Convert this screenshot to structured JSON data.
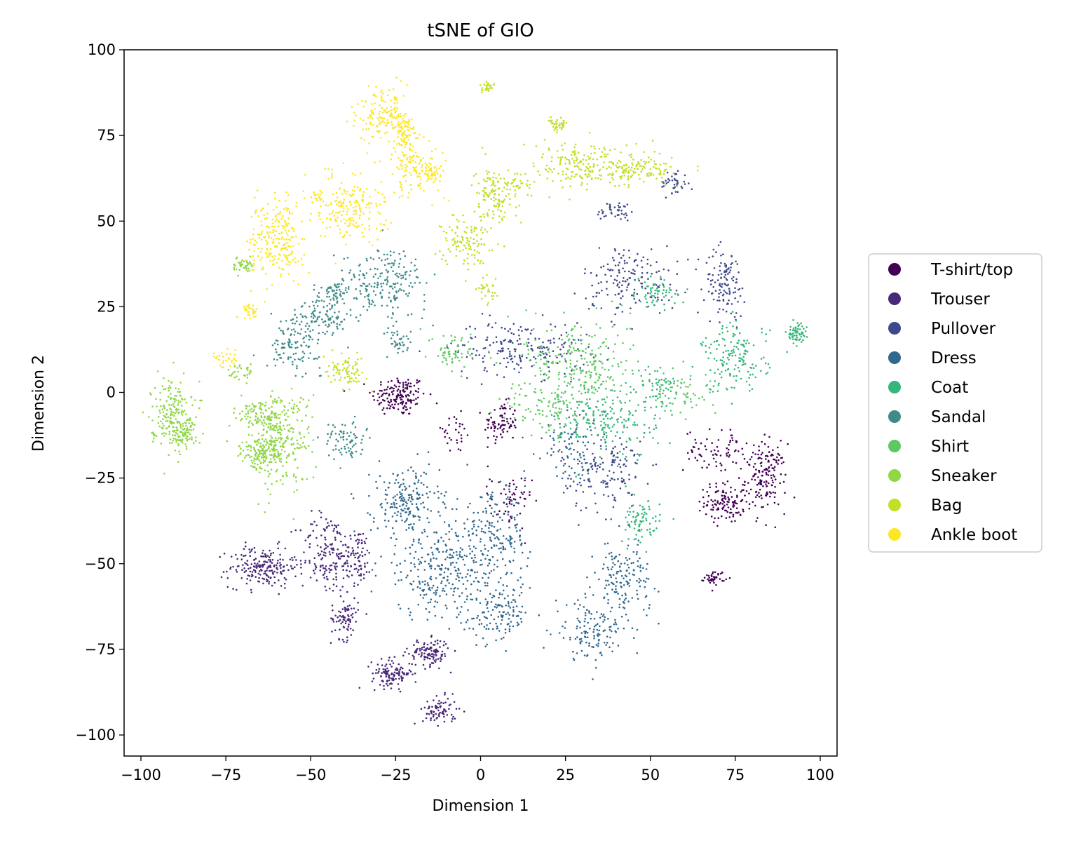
{
  "chart_data": {
    "type": "scatter",
    "title": "tSNE of GIO",
    "xlabel": "Dimension 1",
    "ylabel": "Dimension 2",
    "xlim": [
      -105,
      105
    ],
    "ylim": [
      -106,
      101
    ],
    "xticks": [
      -100,
      -75,
      -50,
      -25,
      0,
      25,
      50,
      75,
      100
    ],
    "yticks": [
      -100,
      -75,
      -50,
      -25,
      0,
      25,
      50,
      75,
      100
    ],
    "xtick_labels": [
      "−100",
      "−75",
      "−50",
      "−25",
      "0",
      "25",
      "50",
      "75",
      "100"
    ],
    "ytick_labels": [
      "−100",
      "−75",
      "−50",
      "−25",
      "0",
      "25",
      "50",
      "75",
      "100"
    ],
    "grid": false,
    "legend_position": "center-right-outside",
    "series": [
      {
        "name": "T-shirt/top",
        "color": "#440154",
        "clusters": [
          {
            "cx": -24,
            "cy": -1,
            "sx": 4,
            "sy": 3,
            "n": 160
          },
          {
            "cx": 6,
            "cy": -9,
            "sx": 2.5,
            "sy": 3,
            "n": 80
          },
          {
            "cx": 72,
            "cy": -32,
            "sx": 3,
            "sy": 3,
            "n": 120
          },
          {
            "cx": 84,
            "cy": -25,
            "sx": 3,
            "sy": 5,
            "n": 160
          },
          {
            "cx": 70,
            "cy": -17,
            "sx": 5,
            "sy": 3,
            "n": 80
          },
          {
            "cx": 69,
            "cy": -54,
            "sx": 1.5,
            "sy": 1,
            "n": 40
          },
          {
            "cx": 9,
            "cy": -32,
            "sx": 3,
            "sy": 4,
            "n": 60
          },
          {
            "cx": -8,
            "cy": -12,
            "sx": 3,
            "sy": 3,
            "n": 30
          }
        ]
      },
      {
        "name": "Trouser",
        "color": "#482878",
        "clusters": [
          {
            "cx": -64,
            "cy": -51,
            "sx": 5,
            "sy": 3,
            "n": 200
          },
          {
            "cx": -45,
            "cy": -47,
            "sx": 4,
            "sy": 6,
            "n": 160
          },
          {
            "cx": -36,
            "cy": -48,
            "sx": 2,
            "sy": 4,
            "n": 80
          },
          {
            "cx": -40,
            "cy": -66,
            "sx": 2,
            "sy": 3,
            "n": 80
          },
          {
            "cx": -26,
            "cy": -82,
            "sx": 3,
            "sy": 2,
            "n": 120
          },
          {
            "cx": -15,
            "cy": -76,
            "sx": 3,
            "sy": 2,
            "n": 120
          },
          {
            "cx": -12,
            "cy": -93,
            "sx": 2.5,
            "sy": 2,
            "n": 80
          }
        ]
      },
      {
        "name": "Pullover",
        "color": "#3e4989",
        "clusters": [
          {
            "cx": 12,
            "cy": 13,
            "sx": 10,
            "sy": 4,
            "n": 200
          },
          {
            "cx": 36,
            "cy": -23,
            "sx": 6,
            "sy": 6,
            "n": 160
          },
          {
            "cx": 44,
            "cy": 33,
            "sx": 7,
            "sy": 5,
            "n": 160
          },
          {
            "cx": 72,
            "cy": 32,
            "sx": 3,
            "sy": 5,
            "n": 120
          },
          {
            "cx": 57,
            "cy": 61,
            "sx": 2,
            "sy": 2,
            "n": 40
          },
          {
            "cx": 40,
            "cy": 53,
            "sx": 3,
            "sy": 1.5,
            "n": 40
          }
        ]
      },
      {
        "name": "Dress",
        "color": "#31688e",
        "clusters": [
          {
            "cx": -22,
            "cy": -32,
            "sx": 5,
            "sy": 5,
            "n": 200
          },
          {
            "cx": -10,
            "cy": -52,
            "sx": 10,
            "sy": 7,
            "n": 320
          },
          {
            "cx": 4,
            "cy": -42,
            "sx": 5,
            "sy": 6,
            "n": 160
          },
          {
            "cx": 6,
            "cy": -65,
            "sx": 4,
            "sy": 4,
            "n": 120
          },
          {
            "cx": 32,
            "cy": -70,
            "sx": 5,
            "sy": 4,
            "n": 120
          },
          {
            "cx": 42,
            "cy": -55,
            "sx": 4,
            "sy": 6,
            "n": 160
          },
          {
            "cx": 25,
            "cy": -15,
            "sx": 5,
            "sy": 5,
            "n": 80
          }
        ]
      },
      {
        "name": "Coat",
        "color": "#35b779",
        "clusters": [
          {
            "cx": 38,
            "cy": -8,
            "sx": 7,
            "sy": 6,
            "n": 200
          },
          {
            "cx": 75,
            "cy": 10,
            "sx": 5,
            "sy": 5,
            "n": 160
          },
          {
            "cx": 93,
            "cy": 17,
            "sx": 1.5,
            "sy": 1.5,
            "n": 60
          },
          {
            "cx": 52,
            "cy": 29,
            "sx": 3,
            "sy": 2,
            "n": 60
          },
          {
            "cx": 47,
            "cy": -38,
            "sx": 3,
            "sy": 3,
            "n": 80
          },
          {
            "cx": 52,
            "cy": 2,
            "sx": 3,
            "sy": 3,
            "n": 60
          }
        ]
      },
      {
        "name": "Sandal",
        "color": "#3e8b8a",
        "clusters": [
          {
            "cx": -28,
            "cy": 32,
            "sx": 6,
            "sy": 5,
            "n": 200
          },
          {
            "cx": -47,
            "cy": 22,
            "sx": 5,
            "sy": 3,
            "n": 120
          },
          {
            "cx": -55,
            "cy": 13,
            "sx": 4,
            "sy": 3,
            "n": 100
          },
          {
            "cx": -40,
            "cy": -14,
            "sx": 3,
            "sy": 3,
            "n": 80
          },
          {
            "cx": -43,
            "cy": 29,
            "sx": 3,
            "sy": 2,
            "n": 60
          },
          {
            "cx": -24,
            "cy": 15,
            "sx": 2,
            "sy": 2,
            "n": 40
          }
        ]
      },
      {
        "name": "Shirt",
        "color": "#5ec962",
        "clusters": [
          {
            "cx": 28,
            "cy": 10,
            "sx": 8,
            "sy": 6,
            "n": 200
          },
          {
            "cx": -8,
            "cy": 12,
            "sx": 3,
            "sy": 3,
            "n": 60
          },
          {
            "cx": 20,
            "cy": -5,
            "sx": 6,
            "sy": 4,
            "n": 100
          },
          {
            "cx": 60,
            "cy": 0,
            "sx": 5,
            "sy": 4,
            "n": 60
          },
          {
            "cx": 32,
            "cy": 3,
            "sx": 3,
            "sy": 3,
            "n": 40
          }
        ]
      },
      {
        "name": "Sneaker",
        "color": "#8fd744",
        "clusters": [
          {
            "cx": -91,
            "cy": -6,
            "sx": 3,
            "sy": 5,
            "n": 200
          },
          {
            "cx": -87,
            "cy": -12,
            "sx": 2,
            "sy": 2,
            "n": 60
          },
          {
            "cx": -60,
            "cy": -13,
            "sx": 5,
            "sy": 7,
            "n": 320
          },
          {
            "cx": -65,
            "cy": -18,
            "sx": 3,
            "sy": 2,
            "n": 100
          },
          {
            "cx": -70,
            "cy": 37,
            "sx": 1.5,
            "sy": 1.5,
            "n": 40
          },
          {
            "cx": -66,
            "cy": -6,
            "sx": 3,
            "sy": 2,
            "n": 60
          },
          {
            "cx": -70,
            "cy": 6,
            "sx": 2,
            "sy": 1.5,
            "n": 30
          }
        ]
      },
      {
        "name": "Bag",
        "color": "#c2df23",
        "clusters": [
          {
            "cx": 32,
            "cy": 66,
            "sx": 8,
            "sy": 3.5,
            "n": 200
          },
          {
            "cx": 48,
            "cy": 65,
            "sx": 5,
            "sy": 2,
            "n": 100
          },
          {
            "cx": 4,
            "cy": 58,
            "sx": 3,
            "sy": 4,
            "n": 120
          },
          {
            "cx": -4,
            "cy": 44,
            "sx": 3.5,
            "sy": 4,
            "n": 120
          },
          {
            "cx": -40,
            "cy": 6,
            "sx": 3,
            "sy": 2,
            "n": 80
          },
          {
            "cx": 23,
            "cy": 78,
            "sx": 1.5,
            "sy": 1,
            "n": 40
          },
          {
            "cx": 2,
            "cy": 29,
            "sx": 1.5,
            "sy": 1.5,
            "n": 30
          },
          {
            "cx": 2,
            "cy": 89,
            "sx": 1,
            "sy": 0.8,
            "n": 30
          },
          {
            "cx": 11,
            "cy": 61,
            "sx": 2,
            "sy": 2,
            "n": 30
          }
        ]
      },
      {
        "name": "Ankle boot",
        "color": "#fde725",
        "clusters": [
          {
            "cx": -60,
            "cy": 45,
            "sx": 4,
            "sy": 6,
            "n": 240
          },
          {
            "cx": -38,
            "cy": 54,
            "sx": 5,
            "sy": 5,
            "n": 200
          },
          {
            "cx": -28,
            "cy": 81,
            "sx": 4,
            "sy": 4,
            "n": 160
          },
          {
            "cx": -19,
            "cy": 66,
            "sx": 4,
            "sy": 4,
            "n": 120
          },
          {
            "cx": -14,
            "cy": 64,
            "sx": 1.5,
            "sy": 1.5,
            "n": 40
          },
          {
            "cx": -22,
            "cy": 75,
            "sx": 2,
            "sy": 2,
            "n": 60
          },
          {
            "cx": -68,
            "cy": 24,
            "sx": 1.2,
            "sy": 1.2,
            "n": 30
          },
          {
            "cx": -75,
            "cy": 10,
            "sx": 2,
            "sy": 1.5,
            "n": 30
          },
          {
            "cx": -48,
            "cy": 57,
            "sx": 1,
            "sy": 1,
            "n": 15
          }
        ]
      }
    ]
  }
}
